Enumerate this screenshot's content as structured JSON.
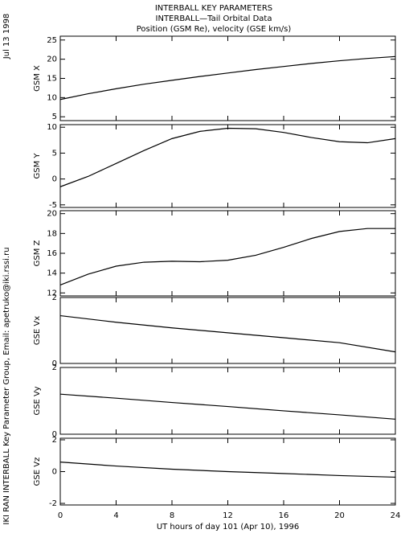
{
  "titles": [
    "INTERBALL KEY PARAMETERS",
    "INTERBALL—Tail Orbital Data",
    "Position (GSM Re), velocity (GSE km/s)"
  ],
  "side_date": "Jul 13 1998",
  "side_credit": "IKI RAN INTERBALL Key Parameter Group, Email: apetruko@iki.rssi.ru",
  "chart_data": [
    {
      "type": "line",
      "ylabel": "GSM X",
      "x": [
        0,
        2,
        4,
        6,
        8,
        10,
        12,
        14,
        16,
        18,
        20,
        22,
        24
      ],
      "values": [
        9.5,
        11.0,
        12.3,
        13.5,
        14.5,
        15.5,
        16.4,
        17.3,
        18.1,
        18.9,
        19.6,
        20.2,
        20.7
      ],
      "xlim": [
        0,
        24
      ],
      "xticks": [
        0,
        4,
        8,
        12,
        16,
        20,
        24
      ],
      "ylim": [
        4,
        26
      ],
      "yticks": [
        5,
        10,
        15,
        20,
        25
      ],
      "color": "#000000"
    },
    {
      "type": "line",
      "ylabel": "GSM Y",
      "x": [
        0,
        2,
        4,
        6,
        8,
        10,
        12,
        14,
        16,
        18,
        20,
        22,
        24
      ],
      "values": [
        -1.5,
        0.5,
        3.0,
        5.5,
        7.8,
        9.2,
        9.8,
        9.7,
        9.0,
        8.0,
        7.2,
        7.0,
        7.8
      ],
      "xlim": [
        0,
        24
      ],
      "xticks": [
        0,
        4,
        8,
        12,
        16,
        20,
        24
      ],
      "ylim": [
        -5.5,
        10.5
      ],
      "yticks": [
        -5,
        0,
        5,
        10
      ],
      "color": "#000000"
    },
    {
      "type": "line",
      "ylabel": "GSM Z",
      "x": [
        0,
        2,
        4,
        6,
        8,
        10,
        12,
        14,
        16,
        18,
        20,
        22,
        24
      ],
      "values": [
        12.8,
        13.9,
        14.7,
        15.1,
        15.2,
        15.15,
        15.3,
        15.8,
        16.6,
        17.5,
        18.2,
        18.5,
        18.5
      ],
      "xlim": [
        0,
        24
      ],
      "xticks": [
        0,
        4,
        8,
        12,
        16,
        20,
        24
      ],
      "ylim": [
        11.7,
        20.3
      ],
      "yticks": [
        12,
        14,
        16,
        18,
        20
      ],
      "color": "#000000"
    },
    {
      "type": "line",
      "ylabel": "GSE Vx",
      "x": [
        0,
        4,
        8,
        12,
        16,
        20,
        24
      ],
      "values": [
        1.45,
        1.25,
        1.08,
        0.93,
        0.78,
        0.63,
        0.35
      ],
      "xlim": [
        0,
        24
      ],
      "xticks": [
        0,
        4,
        8,
        12,
        16,
        20,
        24
      ],
      "ylim": [
        0,
        2
      ],
      "yticks": [
        0,
        2
      ],
      "color": "#000000"
    },
    {
      "type": "line",
      "ylabel": "GSE Vy",
      "x": [
        0,
        4,
        8,
        12,
        16,
        20,
        24
      ],
      "values": [
        1.2,
        1.08,
        0.95,
        0.83,
        0.7,
        0.58,
        0.45
      ],
      "xlim": [
        0,
        24
      ],
      "xticks": [
        0,
        4,
        8,
        12,
        16,
        20,
        24
      ],
      "ylim": [
        0,
        2
      ],
      "yticks": [
        0,
        2
      ],
      "color": "#000000"
    },
    {
      "type": "line",
      "ylabel": "GSE Vz",
      "x": [
        0,
        4,
        8,
        12,
        16,
        20,
        24
      ],
      "values": [
        0.6,
        0.35,
        0.15,
        0.0,
        -0.12,
        -0.25,
        -0.35
      ],
      "xlim": [
        0,
        24
      ],
      "xticks": [
        0,
        4,
        8,
        12,
        16,
        20,
        24
      ],
      "ylim": [
        -2.1,
        2.1
      ],
      "yticks": [
        -2,
        0,
        2
      ],
      "color": "#000000",
      "xlabel": "UT hours of day 101 (Apr 10), 1996"
    }
  ]
}
